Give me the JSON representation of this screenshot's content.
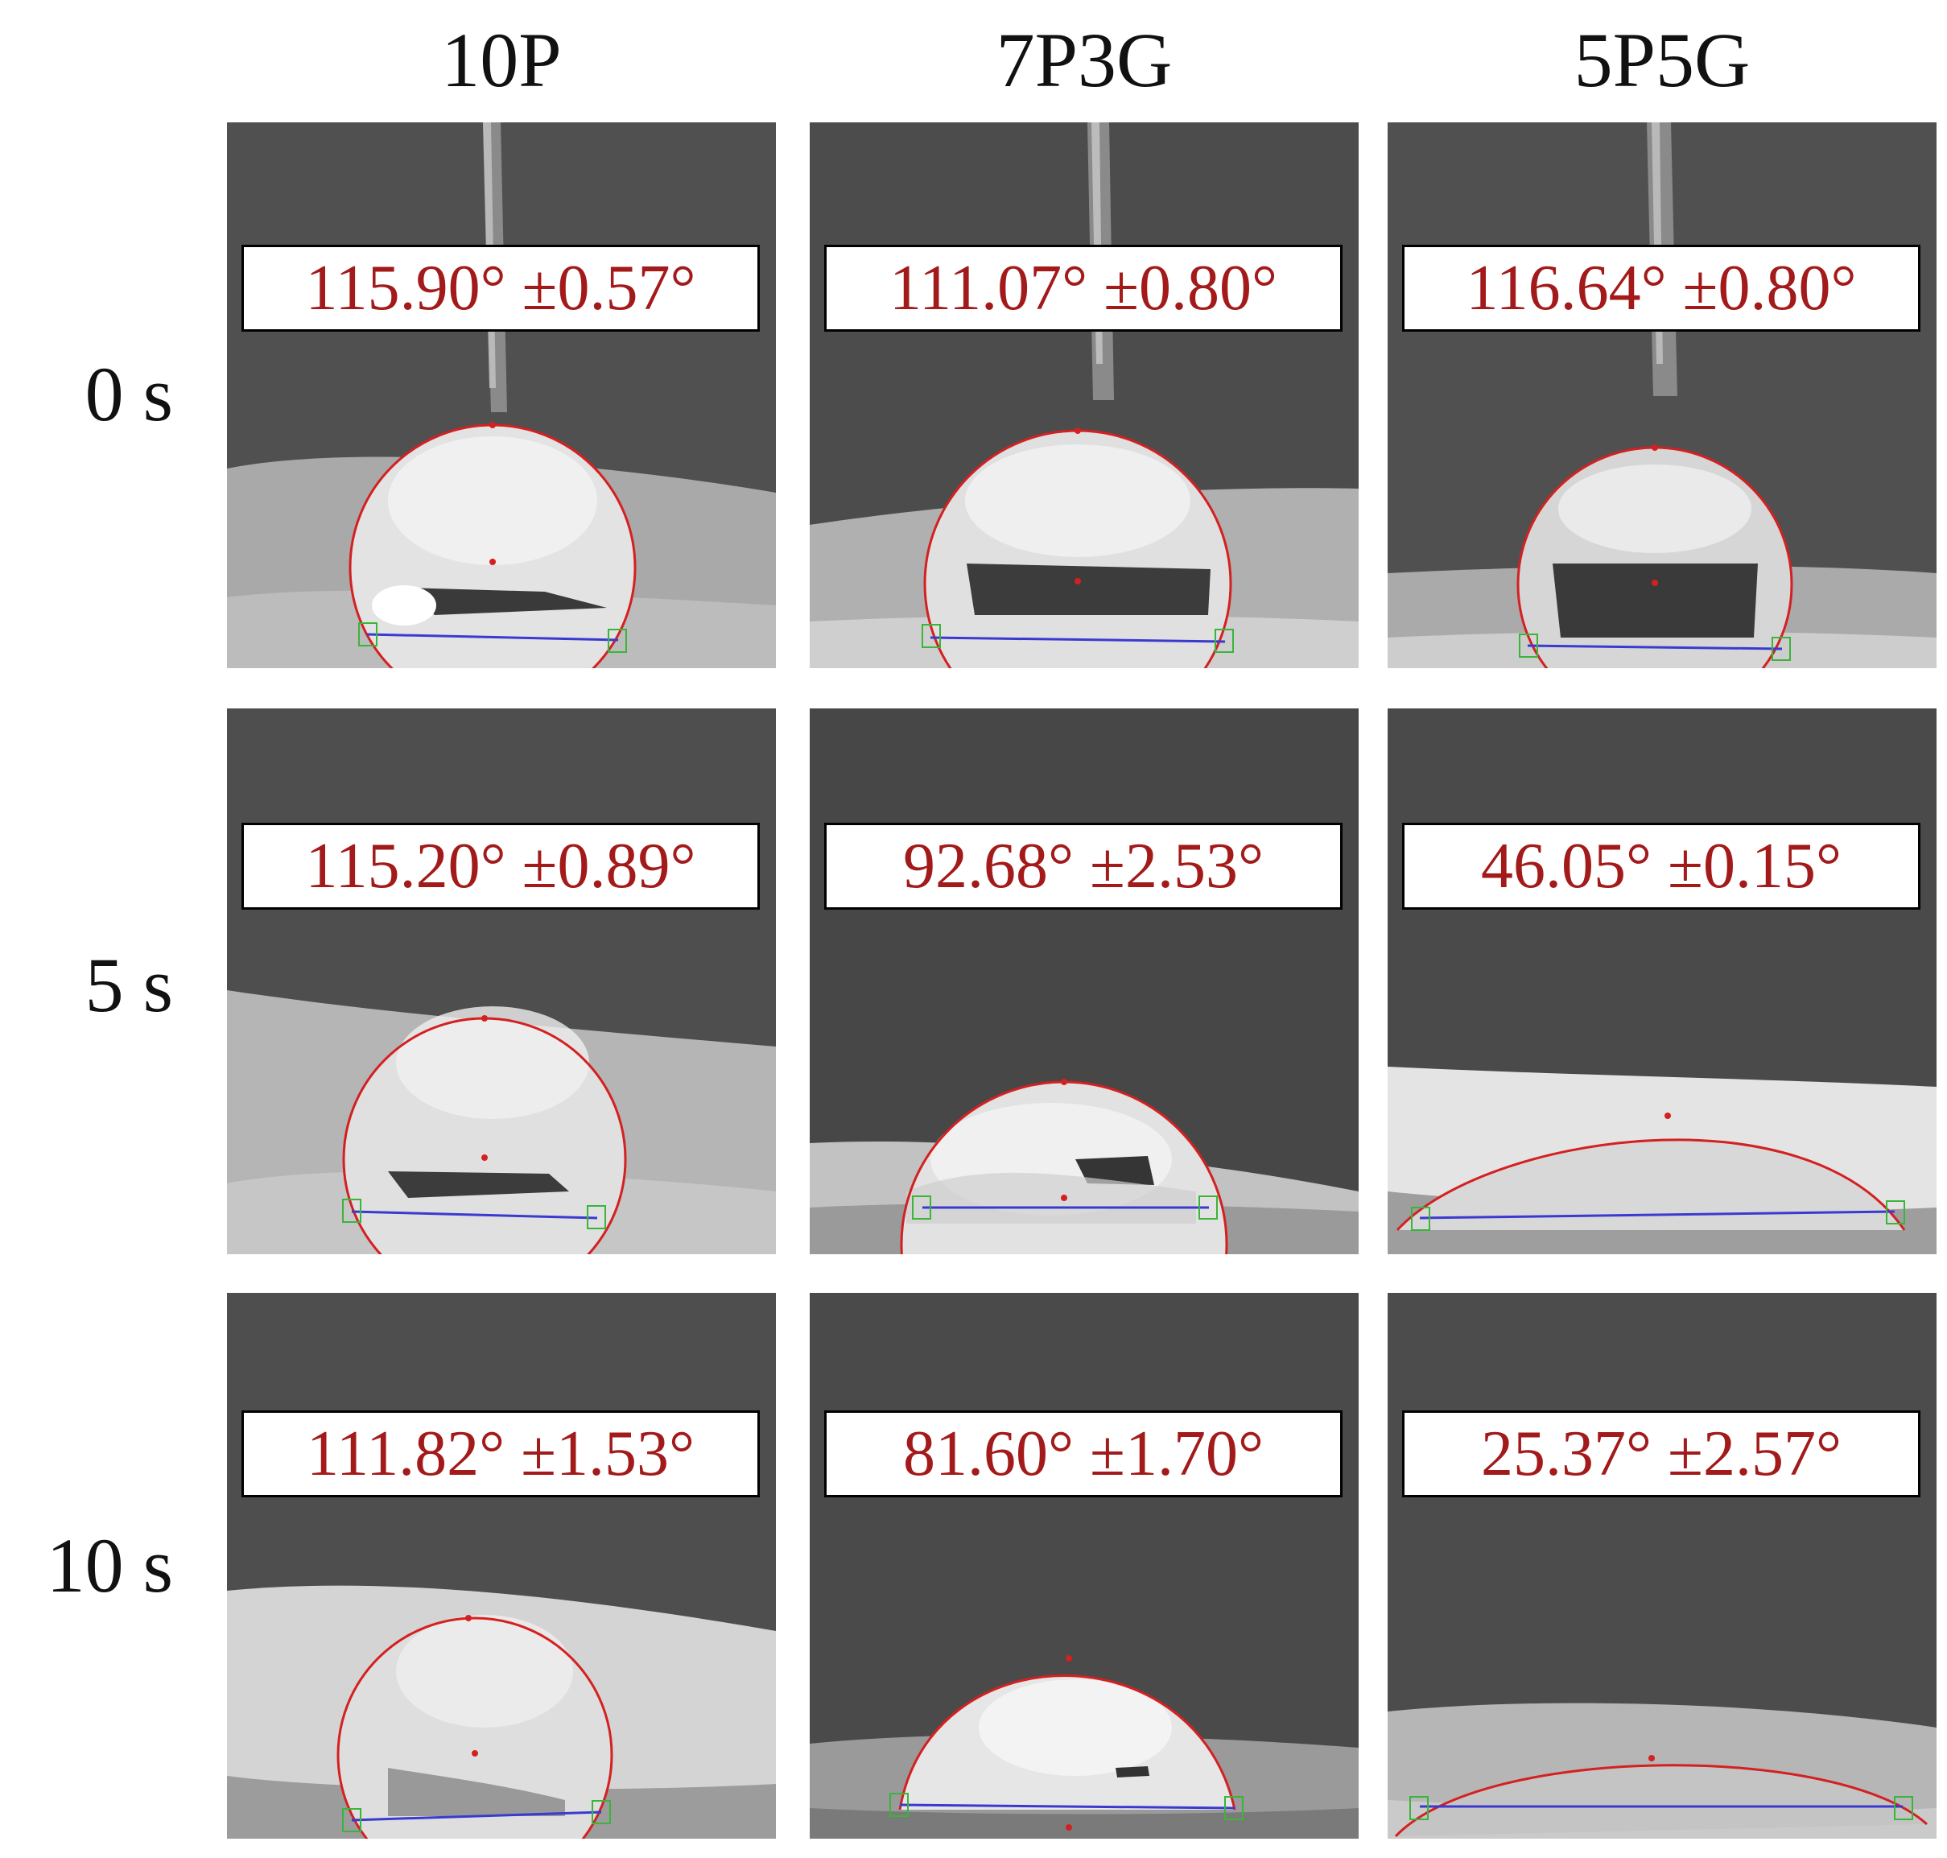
{
  "columns": [
    "10P",
    "7P3G",
    "5P5G"
  ],
  "rows": [
    "0 s",
    "5 s",
    "10 s"
  ],
  "panels": [
    [
      "115.90° ±0.57°",
      "111.07° ±0.80°",
      "116.64° ±0.80°"
    ],
    [
      "115.20° ±0.89°",
      "92.68° ±2.53°",
      "46.05° ±0.15°"
    ],
    [
      "111.82° ±1.53°",
      "81.60° ±1.70°",
      "25.37° ±2.57°"
    ]
  ],
  "colors": {
    "angle_text": "#a31a1a",
    "fit_curve": "#d42020",
    "baseline": "#3a3ad0",
    "markers": "#39b539"
  }
}
